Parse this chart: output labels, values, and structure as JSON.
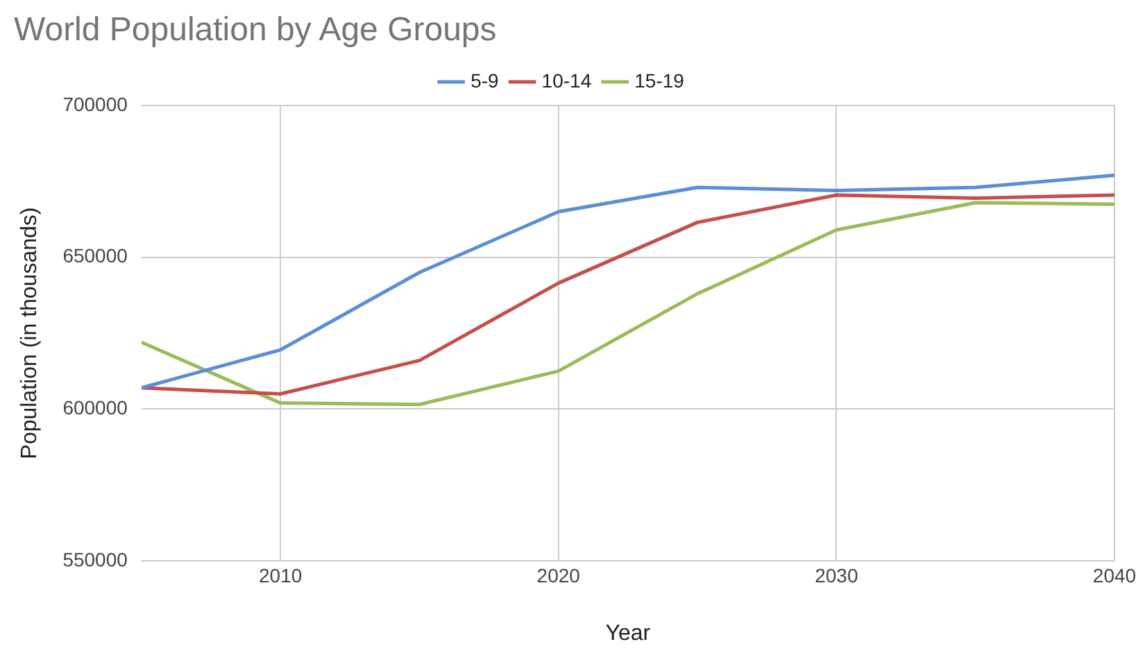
{
  "chart_data": {
    "type": "line",
    "title": "World Population by Age Groups",
    "xlabel": "Year",
    "ylabel": "Population (in thousands)",
    "x": [
      2005,
      2010,
      2015,
      2020,
      2025,
      2030,
      2035,
      2040
    ],
    "series": [
      {
        "name": "5-9",
        "color": "#5b8ed6",
        "values": [
          607000,
          619500,
          645000,
          665000,
          673000,
          672000,
          673000,
          677000
        ]
      },
      {
        "name": "10-14",
        "color": "#c5504b",
        "values": [
          607000,
          605000,
          616000,
          641500,
          661500,
          670500,
          669500,
          670500
        ]
      },
      {
        "name": "15-19",
        "color": "#9bbb59",
        "values": [
          622000,
          602000,
          601500,
          612500,
          638000,
          659000,
          668000,
          667500
        ]
      }
    ],
    "xlim": [
      2005,
      2040
    ],
    "xticks": [
      2010,
      2020,
      2030,
      2040
    ],
    "ylim": [
      550000,
      700000
    ],
    "yticks": [
      550000,
      600000,
      650000,
      700000
    ],
    "grid": true,
    "legend": "top",
    "marker": "none",
    "line_style": "solid"
  }
}
